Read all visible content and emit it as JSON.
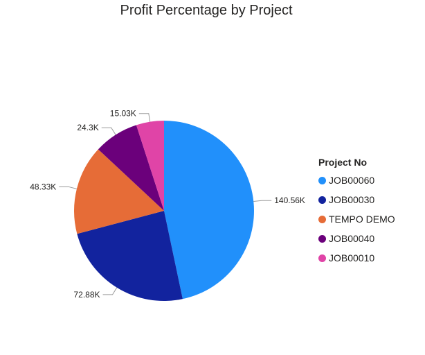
{
  "chart_data": {
    "type": "pie",
    "title": "Profit Percentage by Project",
    "legend_title": "Project No",
    "legend_position": "right",
    "slices": [
      {
        "name": "JOB00060",
        "value": 140.56,
        "label": "140.56K",
        "color": "#2190FB"
      },
      {
        "name": "JOB00030",
        "value": 72.88,
        "label": "72.88K",
        "color": "#12239E"
      },
      {
        "name": "TEMPO DEMO",
        "value": 48.33,
        "label": "48.33K",
        "color": "#E66C37"
      },
      {
        "name": "JOB00040",
        "value": 24.3,
        "label": "24.3K",
        "color": "#6B007B"
      },
      {
        "name": "JOB00010",
        "value": 15.03,
        "label": "15.03K",
        "color": "#E044A7"
      }
    ]
  }
}
